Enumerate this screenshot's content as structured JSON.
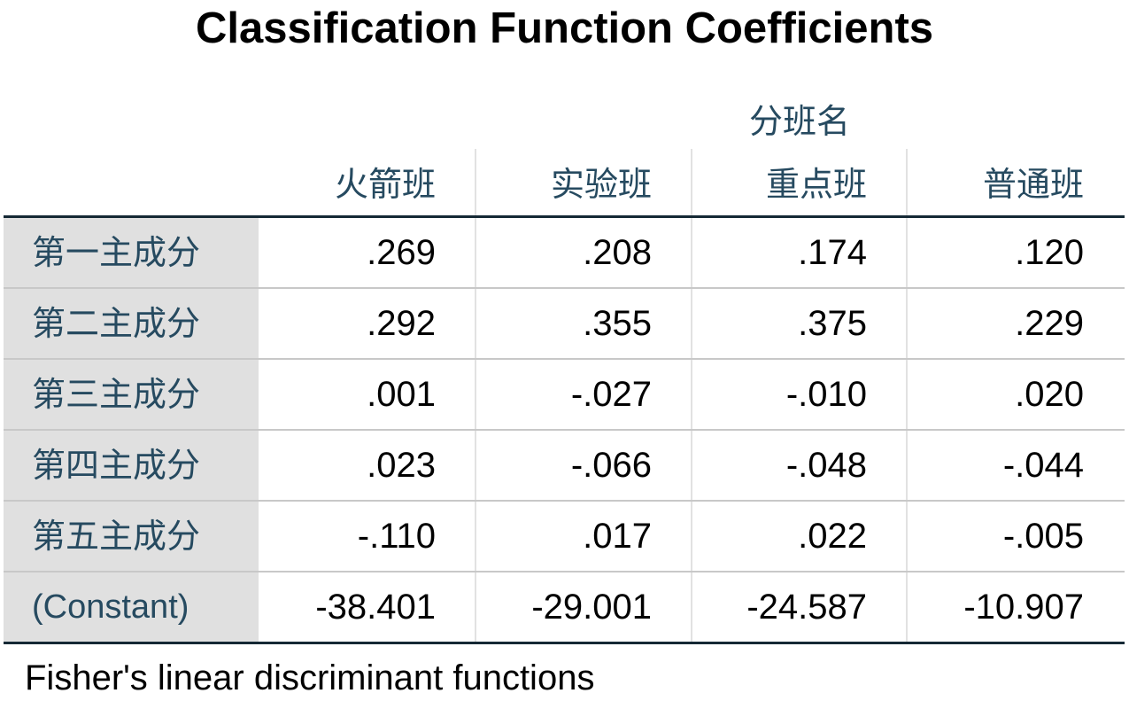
{
  "table": {
    "title": "Classification Function Coefficients",
    "group_header": "分班名",
    "columns": [
      "火箭班",
      "实验班",
      "重点班",
      "普通班"
    ],
    "rows": [
      {
        "label": "第一主成分",
        "values": [
          ".269",
          ".208",
          ".174",
          ".120"
        ]
      },
      {
        "label": "第二主成分",
        "values": [
          ".292",
          ".355",
          ".375",
          ".229"
        ]
      },
      {
        "label": "第三主成分",
        "values": [
          ".001",
          "-.027",
          "-.010",
          ".020"
        ]
      },
      {
        "label": "第四主成分",
        "values": [
          ".023",
          "-.066",
          "-.048",
          "-.044"
        ]
      },
      {
        "label": "第五主成分",
        "values": [
          "-.110",
          ".017",
          ".022",
          "-.005"
        ]
      },
      {
        "label": "(Constant)",
        "values": [
          "-38.401",
          "-29.001",
          "-24.587",
          "-10.907"
        ]
      }
    ],
    "footnote": "Fisher's linear discriminant functions"
  },
  "colors": {
    "header_text": "#264a60",
    "label_background": "#e0e0e0",
    "rule_dark": "#152935",
    "rule_light": "#c8c8c8"
  }
}
